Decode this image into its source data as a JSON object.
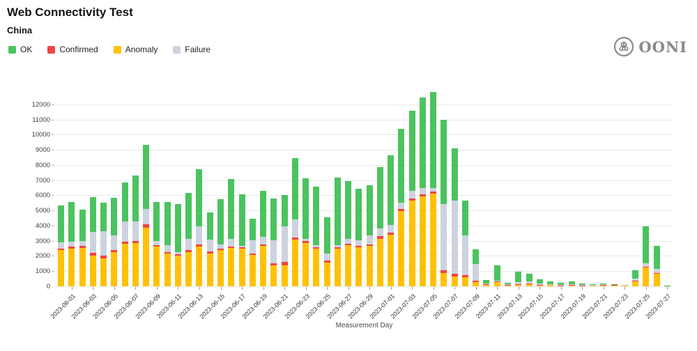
{
  "header": {
    "title": "Web Connectivity Test",
    "subtitle": "China"
  },
  "logo": {
    "text": "OONI"
  },
  "legend": {
    "items": [
      {
        "label": "OK",
        "color": "#4bc35f"
      },
      {
        "label": "Confirmed",
        "color": "#ee4545"
      },
      {
        "label": "Anomaly",
        "color": "#ffc107"
      },
      {
        "label": "Failure",
        "color": "#ccd3de"
      }
    ]
  },
  "chart_data": {
    "type": "bar",
    "stacked": true,
    "title": "Web Connectivity Test",
    "subtitle": "China",
    "xlabel": "Measurement Day",
    "ylabel": "",
    "ylim": [
      0,
      13000
    ],
    "ytick_step": 1000,
    "ytick_max": 12000,
    "grid": true,
    "legend_position": "top-left",
    "stack_order": [
      "Anomaly",
      "Confirmed",
      "Failure",
      "OK"
    ],
    "colors": {
      "OK": "#4bc35f",
      "Confirmed": "#ee4545",
      "Anomaly": "#ffc107",
      "Failure": "#ccd3de"
    },
    "categories": [
      "2023-05-31",
      "2023-06-01",
      "2023-06-02",
      "2023-06-03",
      "2023-06-04",
      "2023-06-05",
      "2023-06-06",
      "2023-06-07",
      "2023-06-08",
      "2023-06-09",
      "2023-06-10",
      "2023-06-11",
      "2023-06-12",
      "2023-06-13",
      "2023-06-14",
      "2023-06-15",
      "2023-06-16",
      "2023-06-17",
      "2023-06-18",
      "2023-06-19",
      "2023-06-20",
      "2023-06-21",
      "2023-06-22",
      "2023-06-23",
      "2023-06-24",
      "2023-06-25",
      "2023-06-26",
      "2023-06-27",
      "2023-06-28",
      "2023-06-29",
      "2023-06-30",
      "2023-07-01",
      "2023-07-02",
      "2023-07-03",
      "2023-07-04",
      "2023-07-05",
      "2023-07-06",
      "2023-07-07",
      "2023-07-08",
      "2023-07-09",
      "2023-07-10",
      "2023-07-11",
      "2023-07-12",
      "2023-07-13",
      "2023-07-14",
      "2023-07-15",
      "2023-07-16",
      "2023-07-17",
      "2023-07-18",
      "2023-07-19",
      "2023-07-20",
      "2023-07-21",
      "2023-07-22",
      "2023-07-23",
      "2023-07-24",
      "2023-07-25",
      "2023-07-26",
      "2023-07-27"
    ],
    "xtick_every": 2,
    "xtick_first_index": 1,
    "series": [
      {
        "name": "Anomaly",
        "values": [
          2370,
          2500,
          2530,
          2010,
          1850,
          2240,
          2800,
          2850,
          3880,
          2620,
          2140,
          2000,
          2260,
          2640,
          2170,
          2370,
          2530,
          2500,
          2060,
          2650,
          1390,
          1380,
          3100,
          2860,
          2490,
          1580,
          2460,
          2730,
          2570,
          2650,
          3140,
          3380,
          4950,
          5640,
          5910,
          6100,
          890,
          660,
          610,
          275,
          120,
          280,
          50,
          120,
          155,
          45,
          120,
          45,
          60,
          35,
          30,
          60,
          90,
          40,
          350,
          1270,
          840,
          10
        ]
      },
      {
        "name": "Confirmed",
        "values": [
          120,
          120,
          120,
          180,
          160,
          140,
          160,
          140,
          190,
          80,
          110,
          110,
          110,
          130,
          130,
          110,
          110,
          60,
          110,
          110,
          140,
          250,
          130,
          110,
          80,
          110,
          110,
          80,
          110,
          110,
          160,
          140,
          160,
          160,
          160,
          160,
          160,
          160,
          130,
          105,
          30,
          20,
          45,
          10,
          10,
          45,
          5,
          10,
          10,
          10,
          45,
          10,
          10,
          60,
          10,
          10,
          10,
          0
        ]
      },
      {
        "name": "Failure",
        "values": [
          390,
          340,
          340,
          1380,
          1610,
          970,
          1330,
          1270,
          1010,
          300,
          450,
          150,
          760,
          1190,
          790,
          290,
          480,
          110,
          850,
          480,
          1520,
          2310,
          1190,
          160,
          130,
          450,
          130,
          310,
          360,
          580,
          510,
          540,
          380,
          510,
          390,
          230,
          4370,
          4830,
          2610,
          1075,
          50,
          75,
          20,
          145,
          140,
          110,
          15,
          45,
          85,
          35,
          10,
          50,
          15,
          5,
          140,
          230,
          280,
          10
        ]
      },
      {
        "name": "OK",
        "values": [
          2450,
          2600,
          2070,
          2300,
          1900,
          2490,
          2540,
          3060,
          4240,
          2560,
          2860,
          3150,
          3040,
          3750,
          1780,
          2950,
          3940,
          3380,
          1420,
          3060,
          2740,
          2080,
          4010,
          4000,
          3860,
          2430,
          4470,
          3800,
          3370,
          3340,
          4060,
          4590,
          4900,
          5260,
          6000,
          6320,
          5580,
          3440,
          2290,
          965,
          230,
          1005,
          130,
          690,
          505,
          260,
          170,
          145,
          155,
          120,
          65,
          55,
          5,
          0,
          550,
          2440,
          1520,
          40
        ]
      }
    ]
  }
}
